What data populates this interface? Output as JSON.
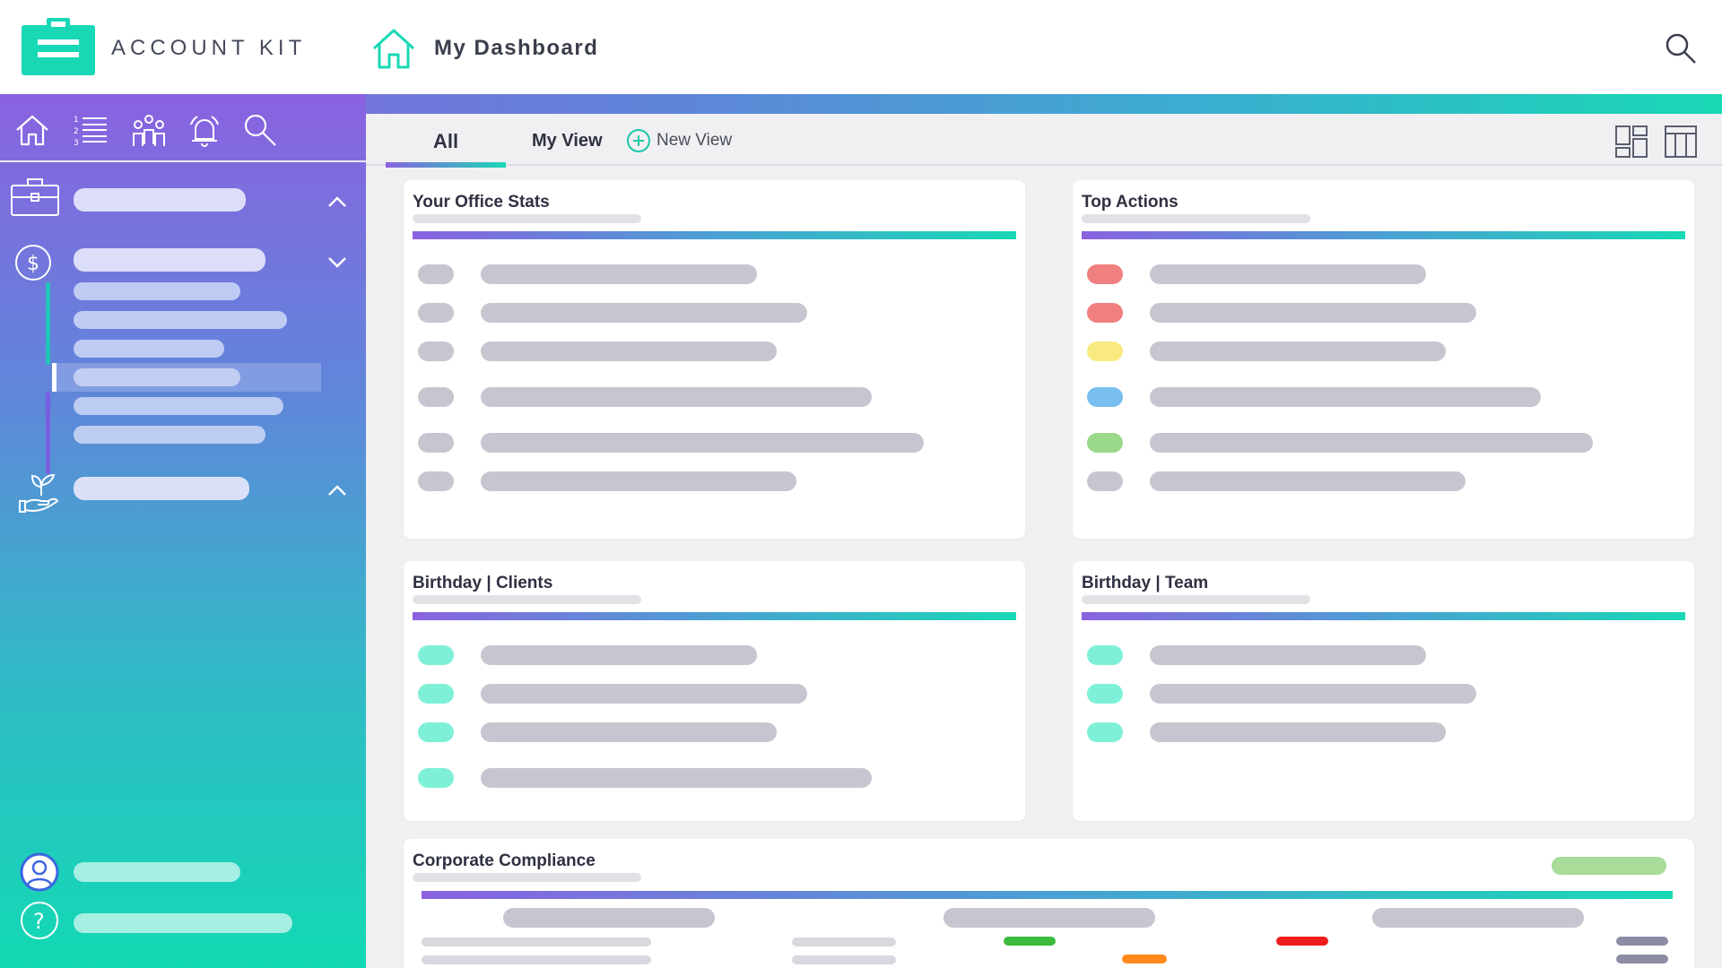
{
  "app": {
    "name": "ACCOUNT KIT",
    "page_title": "My Dashboard",
    "brand_color": "#19d8b5",
    "accent_purple": "#8a62e0"
  },
  "header": {
    "logo_icon": "briefcase-icon",
    "home_icon": "home-icon",
    "search_icon": "search-icon"
  },
  "sidebar": {
    "toolbar_icons": [
      "home-icon",
      "numbered-list-icon",
      "team-icon",
      "alarm-icon",
      "search-icon"
    ],
    "sections": [
      {
        "icon": "briefcase-icon",
        "expanded": false
      },
      {
        "icon": "dollar-circle-icon",
        "expanded": true,
        "sub_items": 6,
        "selected_index": 3
      },
      {
        "icon": "plant-hand-icon",
        "expanded": false
      }
    ],
    "footer_icons": [
      "user-profile-icon",
      "help-icon"
    ]
  },
  "tabs": {
    "all": "All",
    "my_view": "My View",
    "new_view": "New View"
  },
  "layout_buttons": [
    "dashboard-layout-icon",
    "table-layout-icon"
  ],
  "cards": {
    "office_stats": {
      "title": "Your Office Stats",
      "dot_colors": [
        "#c6c6d0",
        "#c6c6d0",
        "#c6c6d0",
        "#c6c6d0",
        "#c6c6d0",
        "#c6c6d0"
      ]
    },
    "top_actions": {
      "title": "Top Actions",
      "dot_colors": [
        "#f08080",
        "#f08080",
        "#f8ea80",
        "#78bff0",
        "#9ad98a",
        "#c6c6d0"
      ]
    },
    "birthday_clients": {
      "title": "Birthday | Clients",
      "dot_colors": [
        "#7ff0d8",
        "#7ff0d8",
        "#7ff0d8",
        "#7ff0d8"
      ]
    },
    "birthday_team": {
      "title": "Birthday | Team",
      "dot_colors": [
        "#7ff0d8",
        "#7ff0d8",
        "#7ff0d8"
      ]
    },
    "corporate_compliance": {
      "title": "Corporate Compliance",
      "status_color": "#a8dc98",
      "chip_colors": [
        "#3dbb3d",
        "#ff8a1a",
        "#ee1d1d",
        "#8c8ca4"
      ]
    }
  }
}
